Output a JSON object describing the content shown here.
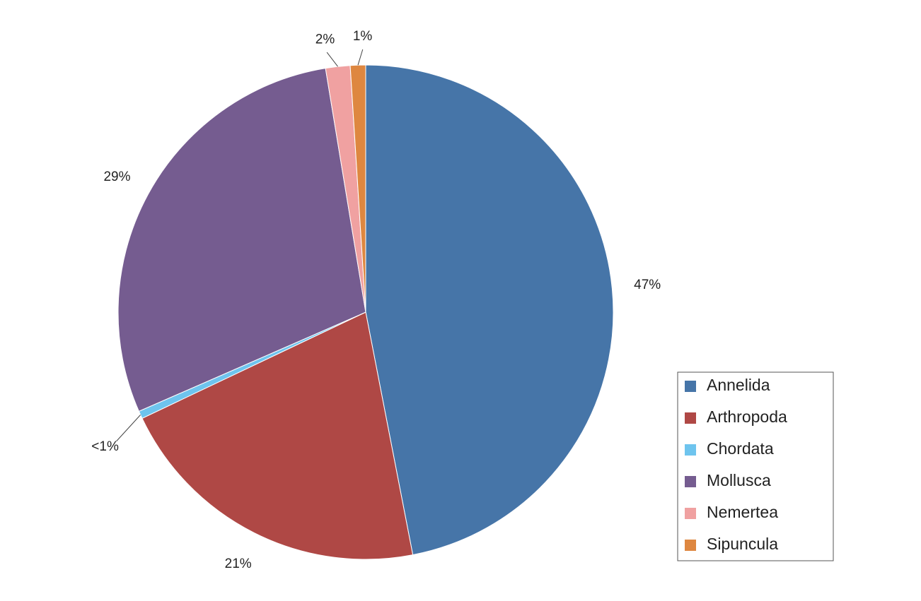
{
  "chart_data": {
    "type": "pie",
    "slices": [
      {
        "label": "Annelida",
        "value": 47,
        "display": "47%",
        "color": "#4675A8"
      },
      {
        "label": "Arthropoda",
        "value": 21,
        "display": "21%",
        "color": "#AF4845"
      },
      {
        "label": "Chordata",
        "value": 0.5,
        "display": "<1%",
        "color": "#6EC4EE"
      },
      {
        "label": "Mollusca",
        "value": 29,
        "display": "29%",
        "color": "#755C90"
      },
      {
        "label": "Nemertea",
        "value": 1.6,
        "display": "2%",
        "color": "#F0A1A1"
      },
      {
        "label": "Sipuncula",
        "value": 1.0,
        "display": "1%",
        "color": "#DE8740"
      }
    ],
    "start_angle": "12 o'clock",
    "direction": "clockwise",
    "legend": {
      "position": "bottom-right",
      "border": true
    }
  }
}
